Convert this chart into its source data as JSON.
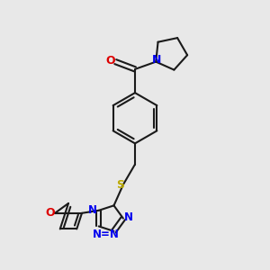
{
  "bg_color": "#e8e8e8",
  "bond_color": "#1a1a1a",
  "N_color": "#0000ee",
  "O_color": "#dd0000",
  "S_color": "#bbaa00",
  "figsize": [
    3.0,
    3.0
  ],
  "dpi": 100,
  "xlim": [
    -1.5,
    4.5
  ],
  "ylim": [
    -4.5,
    3.5
  ]
}
